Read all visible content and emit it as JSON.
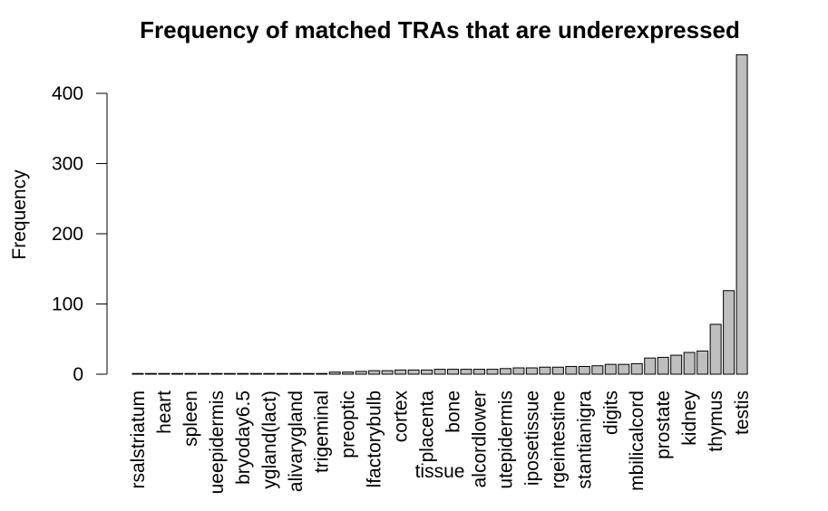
{
  "chart_data": {
    "type": "bar",
    "title": "Frequency of matched TRAs that are  underexpressed",
    "x_label": "tissue",
    "y_label": "Frequency",
    "categories": [
      "rsalstriatum",
      null,
      "heart",
      null,
      "spleen",
      null,
      "ueepidermis",
      null,
      "bryoday6.5",
      null,
      "ygland(lact)",
      null,
      "alivarygland",
      null,
      "trigeminal",
      null,
      "preoptic",
      null,
      "lfactorybulb",
      null,
      "cortex",
      null,
      "placenta",
      null,
      "bone",
      null,
      "alcordlower",
      null,
      "utepidermis",
      null,
      "iposetissue",
      null,
      "rgeintestine",
      null,
      "stantianigra",
      null,
      "digits",
      null,
      "mbilicalcord",
      null,
      "prostate",
      null,
      "kidney",
      null,
      "thymus",
      null,
      "testis"
    ],
    "values": [
      1,
      1,
      1,
      1,
      1,
      1,
      1,
      1,
      1,
      1,
      1,
      1,
      1,
      1,
      1,
      3,
      3,
      4,
      5,
      5,
      6,
      6,
      6,
      7,
      7,
      7,
      7,
      7,
      8,
      9,
      9,
      10,
      10,
      11,
      11,
      12,
      14,
      14,
      15,
      23,
      24,
      27,
      31,
      33,
      71,
      119,
      455
    ],
    "color": "#bebebe",
    "ylim": [
      0,
      455
    ],
    "yticks": [
      0,
      100,
      200,
      300,
      400
    ]
  }
}
